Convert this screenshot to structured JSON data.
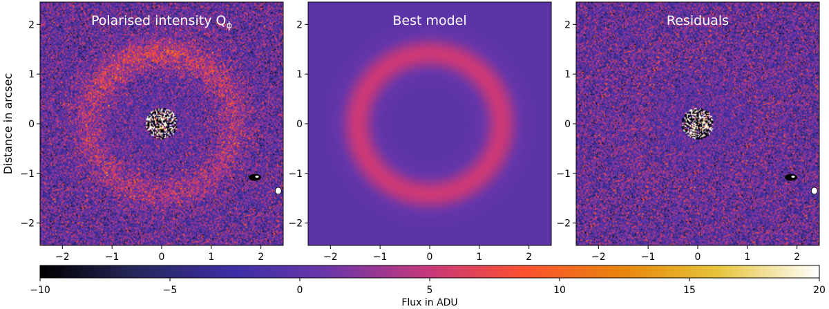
{
  "chart_data": [
    {
      "type": "heatmap",
      "title": "Polarised intensity Q",
      "title_subscript": "ϕ",
      "ylabel": "Distance in arcsec",
      "xlim": [
        -2.45,
        2.45
      ],
      "ylim": [
        -2.45,
        2.45
      ],
      "xticks": [
        -2,
        -1,
        0,
        1,
        2
      ],
      "yticks": [
        -2,
        -1,
        0,
        1,
        2
      ],
      "features": {
        "ring_radius_arcsec": 1.45,
        "ring_width_arcsec": 0.22,
        "ring_peak_adu": 4.5,
        "noise_adu": 3.5,
        "center_mask": true,
        "companion": {
          "x": 1.88,
          "y": -1.08
        },
        "beam_marker": {
          "x": 2.35,
          "y": -1.35
        }
      }
    },
    {
      "type": "heatmap",
      "title": "Best model",
      "xlim": [
        -2.45,
        2.45
      ],
      "ylim": [
        -2.45,
        2.45
      ],
      "xticks": [
        -2,
        -1,
        0,
        1,
        2
      ],
      "yticks": [
        -2,
        -1,
        0,
        1,
        2
      ],
      "features": {
        "ring_radius_arcsec": 1.45,
        "ring_width_arcsec": 0.22,
        "ring_peak_adu": 5.2,
        "background_adu": 0,
        "noise_adu": 0
      }
    },
    {
      "type": "heatmap",
      "title": "Residuals",
      "xlim": [
        -2.45,
        2.45
      ],
      "ylim": [
        -2.45,
        2.45
      ],
      "xticks": [
        -2,
        -1,
        0,
        1,
        2
      ],
      "yticks": [
        -2,
        -1,
        0,
        1,
        2
      ],
      "features": {
        "ring_radius_arcsec": 1.45,
        "ring_peak_adu": 0.5,
        "noise_adu": 3.5,
        "center_mask": true,
        "companion": {
          "x": 1.88,
          "y": -1.08
        },
        "beam_marker": {
          "x": 2.35,
          "y": -1.35
        }
      }
    }
  ],
  "colorbar": {
    "label": "Flux in ADU",
    "range": [
      -10,
      20
    ],
    "ticks": [
      -10,
      -5,
      0,
      5,
      10,
      15,
      20
    ],
    "colormap": "CMRmap",
    "stops": [
      {
        "v": 0.0,
        "c": "#000000"
      },
      {
        "v": 0.12,
        "c": "#26265a"
      },
      {
        "v": 0.25,
        "c": "#3c2fa6"
      },
      {
        "v": 0.37,
        "c": "#6b36a8"
      },
      {
        "v": 0.5,
        "c": "#c8387a"
      },
      {
        "v": 0.62,
        "c": "#fb5030"
      },
      {
        "v": 0.75,
        "c": "#e8860a"
      },
      {
        "v": 0.87,
        "c": "#e6c43a"
      },
      {
        "v": 1.0,
        "c": "#ffffff"
      }
    ]
  }
}
